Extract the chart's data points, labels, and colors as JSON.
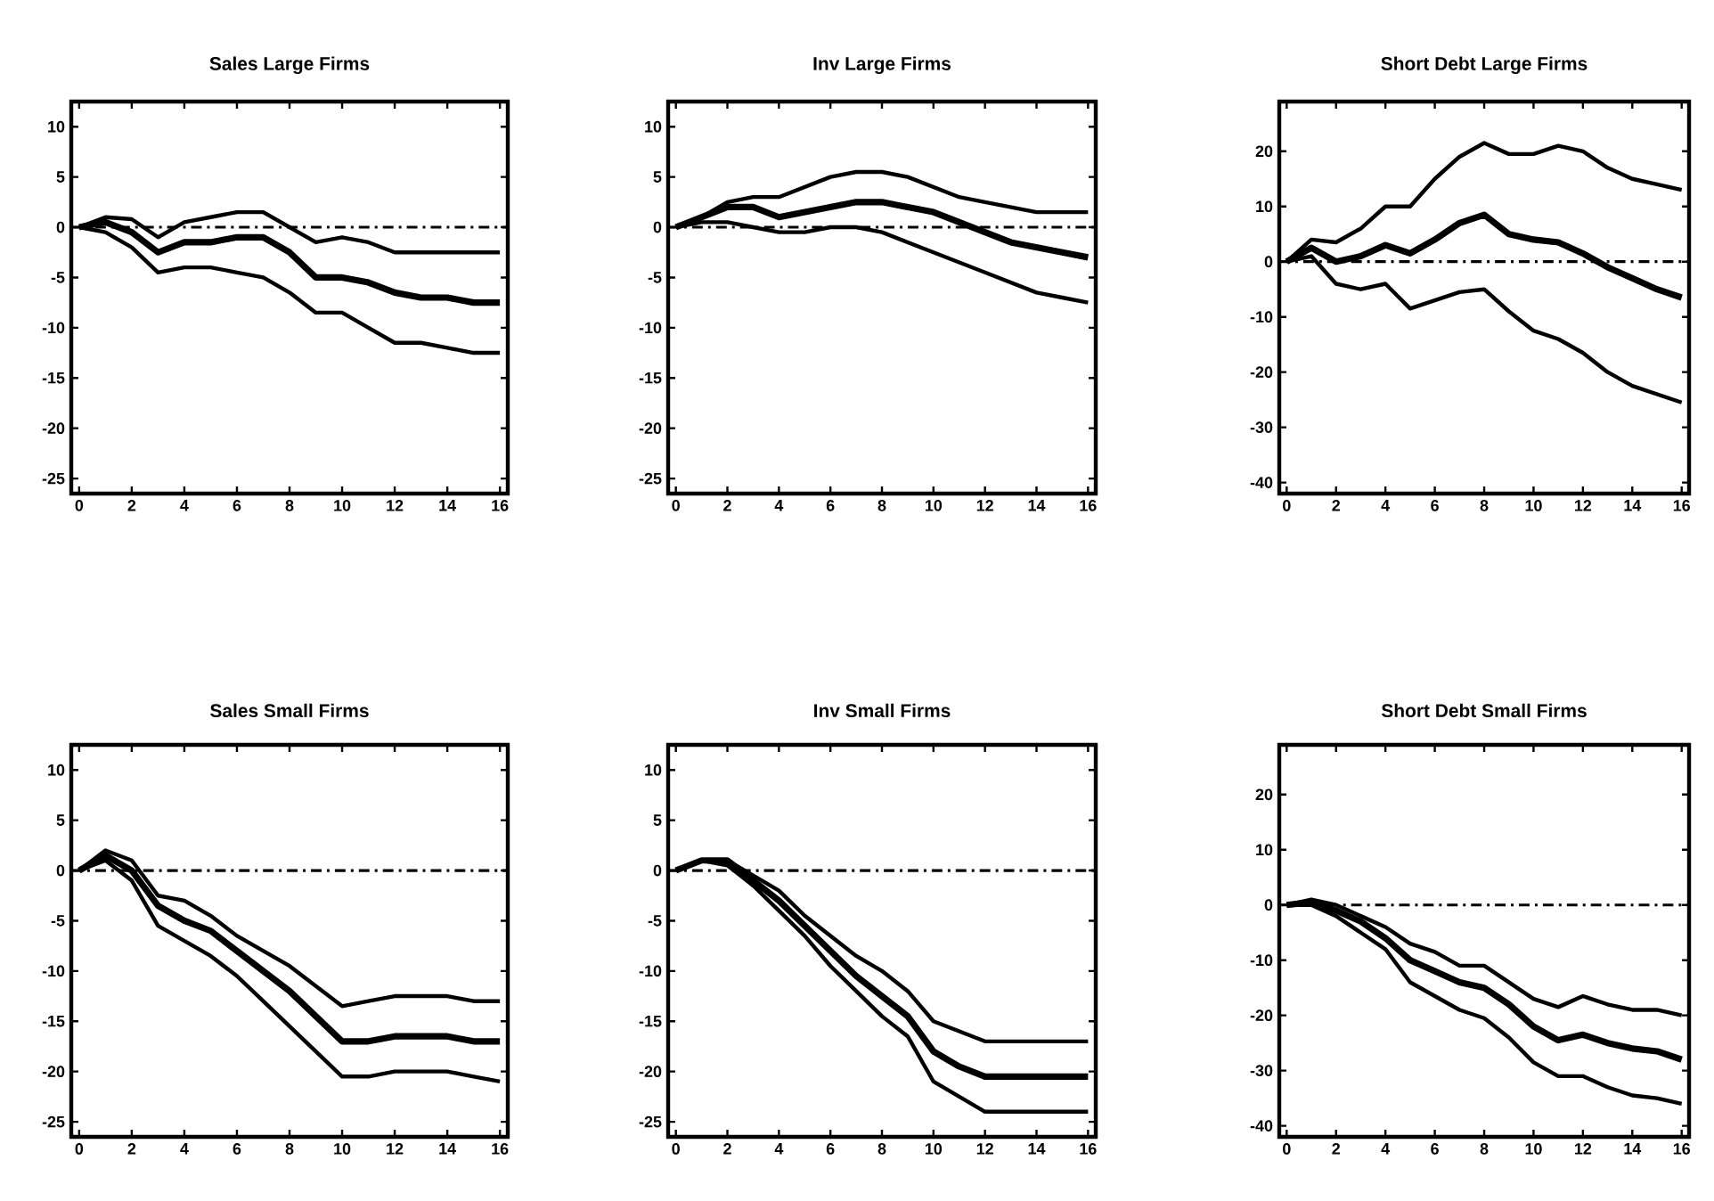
{
  "chart_data": [
    {
      "type": "line",
      "title": "Sales Large Firms",
      "x": [
        0,
        1,
        2,
        3,
        4,
        5,
        6,
        7,
        8,
        9,
        10,
        11,
        12,
        13,
        14,
        15,
        16
      ],
      "xlim": [
        -0.3,
        16.3
      ],
      "ylim": [
        -26.5,
        12.5
      ],
      "xticks": [
        0,
        2,
        4,
        6,
        8,
        10,
        12,
        14,
        16
      ],
      "yticks": [
        10,
        5,
        0,
        -5,
        -10,
        -15,
        -20,
        -25
      ],
      "ref_lines": [
        {
          "axis": "y",
          "value": 0,
          "line_style": "dashdot",
          "color": "#000000"
        }
      ],
      "series": [
        {
          "color": "#000000",
          "values": [
            0,
            1,
            0.8,
            -1,
            0.5,
            1,
            1.5,
            1.5,
            0,
            -1.5,
            -1,
            -1.5,
            -2.5,
            -2.5,
            -2.5,
            -2.5,
            -2.5
          ]
        },
        {
          "color": "#000000",
          "values": [
            0,
            0.5,
            -0.5,
            -2.5,
            -1.5,
            -1.5,
            -1,
            -1,
            -2.5,
            -5,
            -5,
            -5.5,
            -6.5,
            -7,
            -7,
            -7.5,
            -7.5
          ]
        },
        {
          "color": "#000000",
          "values": [
            0,
            -0.5,
            -2,
            -4.5,
            -4,
            -4,
            -4.5,
            -5,
            -6.5,
            -8.5,
            -8.5,
            -10,
            -11.5,
            -11.5,
            -12,
            -12.5,
            -12.5
          ]
        }
      ]
    },
    {
      "type": "line",
      "title": "Inv Large Firms",
      "x": [
        0,
        1,
        2,
        3,
        4,
        5,
        6,
        7,
        8,
        9,
        10,
        11,
        12,
        13,
        14,
        15,
        16
      ],
      "xlim": [
        -0.3,
        16.3
      ],
      "ylim": [
        -26.5,
        12.5
      ],
      "xticks": [
        0,
        2,
        4,
        6,
        8,
        10,
        12,
        14,
        16
      ],
      "yticks": [
        10,
        5,
        0,
        -5,
        -10,
        -15,
        -20,
        -25
      ],
      "ref_lines": [
        {
          "axis": "y",
          "value": 0,
          "line_style": "dashdot",
          "color": "#000000"
        }
      ],
      "series": [
        {
          "color": "#000000",
          "values": [
            0,
            1,
            2.5,
            3,
            3,
            4,
            5,
            5.5,
            5.5,
            5,
            4,
            3,
            2.5,
            2,
            1.5,
            1.5,
            1.5
          ]
        },
        {
          "color": "#000000",
          "values": [
            0,
            1,
            2,
            2,
            1,
            1.5,
            2,
            2.5,
            2.5,
            2,
            1.5,
            0.5,
            -0.5,
            -1.5,
            -2,
            -2.5,
            -3
          ]
        },
        {
          "color": "#000000",
          "values": [
            0,
            0.5,
            0.5,
            0,
            -0.5,
            -0.5,
            0,
            0,
            -0.5,
            -1.5,
            -2.5,
            -3.5,
            -4.5,
            -5.5,
            -6.5,
            -7,
            -7.5
          ]
        }
      ]
    },
    {
      "type": "line",
      "title": "Short Debt Large Firms",
      "x": [
        0,
        1,
        2,
        3,
        4,
        5,
        6,
        7,
        8,
        9,
        10,
        11,
        12,
        13,
        14,
        15,
        16
      ],
      "xlim": [
        -0.3,
        16.3
      ],
      "ylim": [
        -42,
        29
      ],
      "xticks": [
        0,
        2,
        4,
        6,
        8,
        10,
        12,
        14,
        16
      ],
      "yticks": [
        20,
        10,
        0,
        -10,
        -20,
        -30,
        -40
      ],
      "ref_lines": [
        {
          "axis": "y",
          "value": 0,
          "line_style": "dashdot",
          "color": "#000000"
        }
      ],
      "series": [
        {
          "color": "#000000",
          "values": [
            0,
            4,
            3.5,
            6,
            10,
            10,
            15,
            19,
            21.5,
            19.5,
            19.5,
            21,
            20,
            17,
            15,
            14,
            13
          ]
        },
        {
          "color": "#000000",
          "values": [
            0,
            2.5,
            0,
            1,
            3,
            1.5,
            4,
            7,
            8.5,
            5,
            4,
            3.5,
            1.5,
            -1,
            -3,
            -5,
            -6.5
          ]
        },
        {
          "color": "#000000",
          "values": [
            0,
            1,
            -4,
            -5,
            -4,
            -8.5,
            -7,
            -5.5,
            -5,
            -9,
            -12.5,
            -14,
            -16.5,
            -20,
            -22.5,
            -24,
            -25.5
          ]
        }
      ]
    },
    {
      "type": "line",
      "title": "Sales Small Firms",
      "x": [
        0,
        1,
        2,
        3,
        4,
        5,
        6,
        7,
        8,
        9,
        10,
        11,
        12,
        13,
        14,
        15,
        16
      ],
      "xlim": [
        -0.3,
        16.3
      ],
      "ylim": [
        -26.5,
        12.5
      ],
      "xticks": [
        0,
        2,
        4,
        6,
        8,
        10,
        12,
        14,
        16
      ],
      "yticks": [
        10,
        5,
        0,
        -5,
        -10,
        -15,
        -20,
        -25
      ],
      "ref_lines": [
        {
          "axis": "y",
          "value": 0,
          "line_style": "dashdot",
          "color": "#000000"
        }
      ],
      "series": [
        {
          "color": "#000000",
          "values": [
            0,
            2,
            1,
            -2.5,
            -3,
            -4.5,
            -6.5,
            -8,
            -9.5,
            -11.5,
            -13.5,
            -13,
            -12.5,
            -12.5,
            -12.5,
            -13,
            -13
          ]
        },
        {
          "color": "#000000",
          "values": [
            0,
            1.5,
            0,
            -3.5,
            -5,
            -6,
            -8,
            -10,
            -12,
            -14.5,
            -17,
            -17,
            -16.5,
            -16.5,
            -16.5,
            -17,
            -17
          ]
        },
        {
          "color": "#000000",
          "values": [
            0,
            1,
            -1,
            -5.5,
            -7,
            -8.5,
            -10.5,
            -13,
            -15.5,
            -18,
            -20.5,
            -20.5,
            -20,
            -20,
            -20,
            -20.5,
            -21
          ]
        }
      ]
    },
    {
      "type": "line",
      "title": "Inv Small Firms",
      "x": [
        0,
        1,
        2,
        3,
        4,
        5,
        6,
        7,
        8,
        9,
        10,
        11,
        12,
        13,
        14,
        15,
        16
      ],
      "xlim": [
        -0.3,
        16.3
      ],
      "ylim": [
        -26.5,
        12.5
      ],
      "xticks": [
        0,
        2,
        4,
        6,
        8,
        10,
        12,
        14,
        16
      ],
      "yticks": [
        10,
        5,
        0,
        -5,
        -10,
        -15,
        -20,
        -25
      ],
      "ref_lines": [
        {
          "axis": "y",
          "value": 0,
          "line_style": "dashdot",
          "color": "#000000"
        }
      ],
      "series": [
        {
          "color": "#000000",
          "values": [
            0,
            1,
            1,
            -0.5,
            -2,
            -4.5,
            -6.5,
            -8.5,
            -10,
            -12,
            -15,
            -16,
            -17,
            -17,
            -17,
            -17,
            -17
          ]
        },
        {
          "color": "#000000",
          "values": [
            0,
            1,
            1,
            -1,
            -3,
            -5.5,
            -8,
            -10.5,
            -12.5,
            -14.5,
            -18,
            -19.5,
            -20.5,
            -20.5,
            -20.5,
            -20.5,
            -20.5
          ]
        },
        {
          "color": "#000000",
          "values": [
            0,
            1,
            0.5,
            -1.5,
            -4,
            -6.5,
            -9.5,
            -12,
            -14.5,
            -16.5,
            -21,
            -22.5,
            -24,
            -24,
            -24,
            -24,
            -24
          ]
        }
      ]
    },
    {
      "type": "line",
      "title": "Short Debt Small Firms",
      "x": [
        0,
        1,
        2,
        3,
        4,
        5,
        6,
        7,
        8,
        9,
        10,
        11,
        12,
        13,
        14,
        15,
        16
      ],
      "xlim": [
        -0.3,
        16.3
      ],
      "ylim": [
        -42,
        29
      ],
      "xticks": [
        0,
        2,
        4,
        6,
        8,
        10,
        12,
        14,
        16
      ],
      "yticks": [
        20,
        10,
        0,
        -10,
        -20,
        -30,
        -40
      ],
      "ref_lines": [
        {
          "axis": "y",
          "value": 0,
          "line_style": "dashdot",
          "color": "#000000"
        }
      ],
      "series": [
        {
          "color": "#000000",
          "values": [
            0,
            1,
            0,
            -2,
            -4,
            -7,
            -8.5,
            -11,
            -11,
            -14,
            -17,
            -18.5,
            -16.5,
            -18,
            -19,
            -19,
            -20
          ]
        },
        {
          "color": "#000000",
          "values": [
            0,
            0.5,
            -1,
            -3,
            -6,
            -10,
            -12,
            -14,
            -15,
            -18,
            -22,
            -24.5,
            -23.5,
            -25,
            -26,
            -26.5,
            -28
          ]
        },
        {
          "color": "#000000",
          "values": [
            0,
            0,
            -2,
            -5,
            -8,
            -14,
            -16.5,
            -19,
            -20.5,
            -24,
            -28.5,
            -31,
            -31,
            -33,
            -34.5,
            -35,
            -36
          ]
        }
      ]
    }
  ]
}
